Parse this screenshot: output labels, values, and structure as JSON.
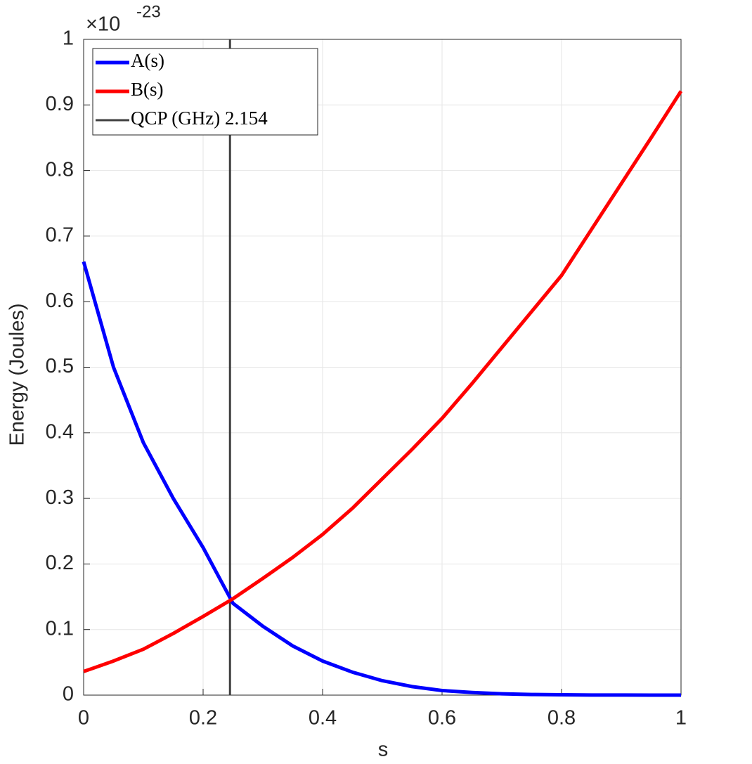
{
  "chart_data": {
    "type": "line",
    "x_label": "s",
    "y_label": "Energy (Joules)",
    "y_multiplier": {
      "base": "×10",
      "exponent": "-23"
    },
    "x": [
      0,
      0.05,
      0.1,
      0.15,
      0.2,
      0.25,
      0.3,
      0.35,
      0.4,
      0.45,
      0.5,
      0.55,
      0.6,
      0.65,
      0.7,
      0.75,
      0.8,
      0.85,
      0.9,
      0.95,
      1
    ],
    "series": [
      {
        "name": "A(s)",
        "color": "#0000ff",
        "values": [
          0.661,
          0.5,
          0.385,
          0.3,
          0.225,
          0.14,
          0.105,
          0.075,
          0.052,
          0.035,
          0.022,
          0.013,
          0.007,
          0.004,
          0.002,
          0.001,
          0.0005,
          0.0002,
          0.0001,
          0,
          0
        ]
      },
      {
        "name": "B(s)",
        "color": "#ff0000",
        "values": [
          0.036,
          0.052,
          0.07,
          0.094,
          0.12,
          0.147,
          0.178,
          0.21,
          0.245,
          0.285,
          0.33,
          0.375,
          0.422,
          0.475,
          0.53,
          0.585,
          0.64,
          0.71,
          0.78,
          0.85,
          0.921
        ]
      }
    ],
    "vlines": [
      {
        "name": "QCP (GHz) 2.154",
        "color": "#404040",
        "x": 0.245
      }
    ],
    "xlim": [
      0,
      1
    ],
    "ylim": [
      0,
      1
    ],
    "xticks": [
      0,
      0.2,
      0.4,
      0.6,
      0.8,
      1
    ],
    "yticks": [
      0,
      0.1,
      0.2,
      0.3,
      0.4,
      0.5,
      0.6,
      0.7,
      0.8,
      0.9,
      1
    ],
    "grid": true,
    "legend": "top-left"
  }
}
